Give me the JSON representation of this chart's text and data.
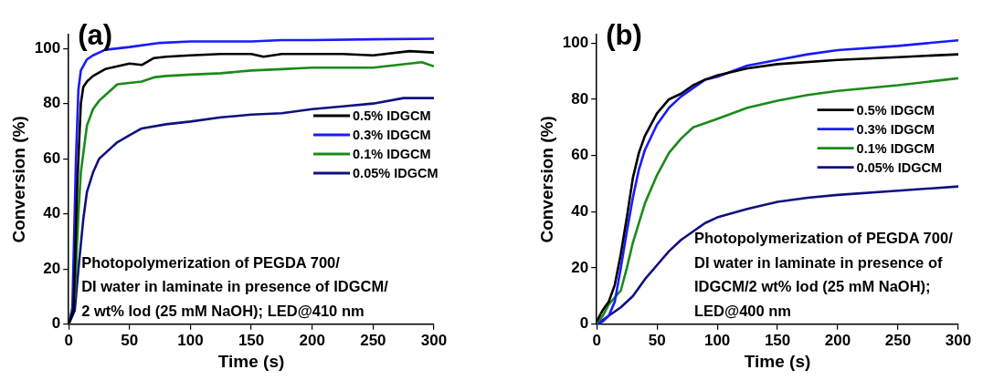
{
  "chart_data": [
    {
      "type": "line",
      "title": "(a)",
      "xlabel": "Time (s)",
      "ylabel": "Conversion (%)",
      "xlim": [
        0,
        300
      ],
      "xticks": [
        0,
        50,
        100,
        150,
        200,
        250,
        300
      ],
      "ylim": [
        0,
        105
      ],
      "yticks": [
        0,
        20,
        40,
        60,
        80,
        100
      ],
      "grid": false,
      "legend": "right",
      "marker": "none",
      "line_style": "solid",
      "annotations": [
        "Photopolymerization of PEGDA 700/",
        "DI water in laminate in presence of IDGCM/",
        "2 wt% Iod (25 mM NaOH); LED@410 nm"
      ],
      "series": [
        {
          "name": "0.5% IDGCM",
          "color": "#000000",
          "x": [
            0,
            4,
            7,
            10,
            12,
            15,
            20,
            30,
            40,
            50,
            60,
            70,
            80,
            100,
            125,
            150,
            160,
            175,
            200,
            225,
            250,
            280,
            300
          ],
          "values": [
            0,
            5,
            50,
            80,
            86,
            88,
            90,
            92.5,
            93.5,
            94.5,
            94,
            96.5,
            97,
            97.5,
            98,
            98,
            97,
            98,
            98,
            98,
            97.5,
            99,
            98.5
          ]
        },
        {
          "name": "0.3% IDGCM",
          "color": "#1a1aff",
          "x": [
            0,
            3,
            6,
            8,
            10,
            15,
            20,
            30,
            50,
            75,
            100,
            125,
            150,
            175,
            200,
            250,
            300
          ],
          "values": [
            0,
            5,
            60,
            85,
            92,
            96,
            97.5,
            99.5,
            100.5,
            102,
            102.5,
            102.5,
            102.5,
            103,
            103,
            103.3,
            103.5
          ]
        },
        {
          "name": "0.1% IDGCM",
          "color": "#1a8a1a",
          "x": [
            0,
            5,
            8,
            10,
            15,
            20,
            25,
            30,
            40,
            50,
            60,
            70,
            80,
            100,
            125,
            150,
            175,
            200,
            250,
            290,
            300
          ],
          "values": [
            0,
            10,
            40,
            55,
            72,
            78,
            81,
            83,
            87,
            87.5,
            88,
            89.5,
            90,
            90.5,
            91,
            92,
            92.5,
            93,
            93,
            95,
            93.5
          ]
        },
        {
          "name": "0.05% IDGCM",
          "color": "#101080",
          "x": [
            0,
            5,
            8,
            12,
            15,
            20,
            25,
            30,
            40,
            50,
            60,
            80,
            100,
            125,
            150,
            175,
            200,
            225,
            250,
            275,
            300
          ],
          "values": [
            0,
            5,
            20,
            38,
            48,
            55,
            60,
            62,
            66,
            68.5,
            71,
            72.5,
            73.5,
            75,
            76,
            76.5,
            78,
            79,
            80,
            82,
            82
          ]
        }
      ]
    },
    {
      "type": "line",
      "title": "(b)",
      "xlabel": "Time (s)",
      "ylabel": "Conversion (%)",
      "xlim": [
        0,
        300
      ],
      "xticks": [
        0,
        50,
        100,
        150,
        200,
        250,
        300
      ],
      "ylim": [
        0,
        103
      ],
      "yticks": [
        0,
        20,
        40,
        60,
        80,
        100
      ],
      "grid": false,
      "legend": "right",
      "marker": "none",
      "line_style": "solid",
      "annotations": [
        "Photopolymerization of PEGDA 700/",
        "DI water in laminate in presence of",
        "IDGCM/2 wt% Iod (25 mM NaOH);",
        "LED@400 nm"
      ],
      "series": [
        {
          "name": "0.5% IDGCM",
          "color": "#000000",
          "x": [
            0,
            5,
            10,
            15,
            20,
            25,
            30,
            35,
            40,
            50,
            60,
            70,
            80,
            90,
            100,
            125,
            150,
            200,
            250,
            300
          ],
          "values": [
            1,
            5,
            8,
            14,
            25,
            38,
            52,
            61,
            67,
            75,
            80,
            82,
            85,
            87,
            88.5,
            91,
            92.5,
            94,
            95,
            96
          ]
        },
        {
          "name": "0.3% IDGCM",
          "color": "#1a1aff",
          "x": [
            0,
            5,
            10,
            15,
            20,
            25,
            30,
            35,
            40,
            50,
            60,
            70,
            80,
            90,
            100,
            125,
            150,
            175,
            200,
            250,
            300
          ],
          "values": [
            0,
            1,
            3,
            8,
            20,
            33,
            45,
            55,
            62,
            71,
            77,
            81,
            84,
            87,
            88,
            92,
            94,
            96,
            97.5,
            99,
            101
          ]
        },
        {
          "name": "0.1% IDGCM",
          "color": "#1a8a1a",
          "x": [
            0,
            5,
            10,
            20,
            25,
            30,
            40,
            50,
            60,
            70,
            80,
            100,
            125,
            150,
            175,
            200,
            250,
            300
          ],
          "values": [
            0,
            3,
            7,
            12,
            20,
            29,
            43,
            53,
            61,
            66,
            70,
            73,
            77,
            79.5,
            81.5,
            83,
            85,
            87.5
          ]
        },
        {
          "name": "0.05% IDGCM",
          "color": "#101080",
          "x": [
            0,
            10,
            20,
            30,
            40,
            50,
            60,
            70,
            80,
            90,
            100,
            125,
            150,
            175,
            200,
            250,
            300
          ],
          "values": [
            0,
            3,
            6,
            10,
            16,
            21,
            26,
            30,
            33,
            36,
            38,
            41,
            43.5,
            45,
            46,
            47.5,
            49
          ]
        }
      ]
    }
  ]
}
